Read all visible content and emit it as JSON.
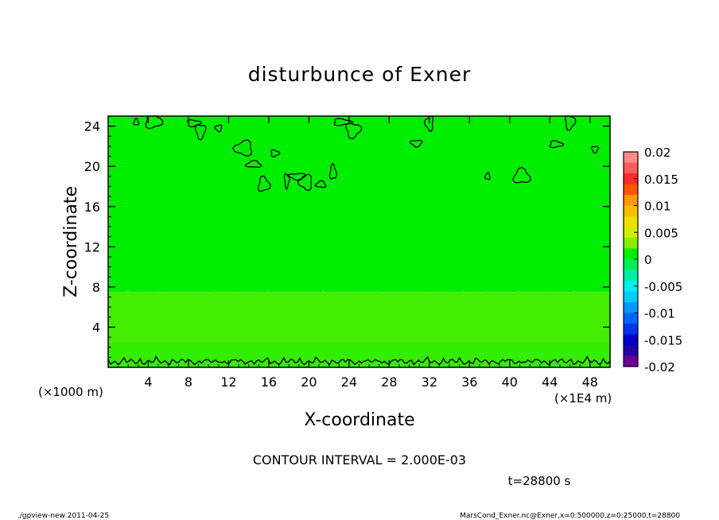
{
  "chart_data": {
    "type": "heatmap",
    "title": "disturbunce of Exner",
    "xlabel": "X-coordinate",
    "ylabel": "Z-coordinate",
    "x_unit": "(×1E4 m)",
    "y_unit": "(×1000 m)",
    "xlim": [
      0,
      50
    ],
    "ylim": [
      0,
      25
    ],
    "x_ticks": [
      4,
      8,
      12,
      16,
      20,
      24,
      28,
      32,
      36,
      40,
      44,
      48
    ],
    "y_ticks": [
      4,
      8,
      12,
      16,
      20,
      24
    ],
    "field_bands": [
      {
        "z_range": [
          0,
          2.5
        ],
        "value_range": [
          0,
          0.002
        ],
        "color": "#33ee00"
      },
      {
        "z_range": [
          2.5,
          7.5
        ],
        "value_range": [
          0.002,
          0.004
        ],
        "color": "#44ee00"
      },
      {
        "z_range": [
          7.5,
          25
        ],
        "value_range": [
          0,
          0.002
        ],
        "color": "#00ee00"
      }
    ],
    "contour_interval_text": "CONTOUR INTERVAL = 2.000E-03",
    "time_text": "t=28800 s",
    "colorbar": {
      "ticks": [
        "0.02",
        "0.015",
        "0.01",
        "0.005",
        "0",
        "-0.005",
        "-0.01",
        "-0.015",
        "-0.02"
      ],
      "levels": [
        {
          "from": 0.018,
          "to": 0.02,
          "color": "#ff8a8a"
        },
        {
          "from": 0.016,
          "to": 0.018,
          "color": "#ff5a5a"
        },
        {
          "from": 0.014,
          "to": 0.016,
          "color": "#ff2a2a"
        },
        {
          "from": 0.012,
          "to": 0.014,
          "color": "#ff5500"
        },
        {
          "from": 0.01,
          "to": 0.012,
          "color": "#ff9900"
        },
        {
          "from": 0.008,
          "to": 0.01,
          "color": "#ffbb00"
        },
        {
          "from": 0.006,
          "to": 0.008,
          "color": "#eedd00"
        },
        {
          "from": 0.004,
          "to": 0.006,
          "color": "#ccee00"
        },
        {
          "from": 0.002,
          "to": 0.004,
          "color": "#88ee00"
        },
        {
          "from": 0,
          "to": 0.002,
          "color": "#00ee00"
        },
        {
          "from": -0.002,
          "to": 0,
          "color": "#00ee55"
        },
        {
          "from": -0.004,
          "to": -0.002,
          "color": "#00eeaa"
        },
        {
          "from": -0.006,
          "to": -0.004,
          "color": "#00eeee"
        },
        {
          "from": -0.008,
          "to": -0.006,
          "color": "#00ccff"
        },
        {
          "from": -0.01,
          "to": -0.008,
          "color": "#0099ff"
        },
        {
          "from": -0.012,
          "to": -0.01,
          "color": "#0066ff"
        },
        {
          "from": -0.014,
          "to": -0.012,
          "color": "#0033ee"
        },
        {
          "from": -0.016,
          "to": -0.014,
          "color": "#0000cc"
        },
        {
          "from": -0.018,
          "to": -0.016,
          "color": "#2200aa"
        },
        {
          "from": -0.02,
          "to": -0.018,
          "color": "#6a0099"
        }
      ]
    },
    "contour_blobs_top": [
      {
        "x": 2.8,
        "z": 24.4
      },
      {
        "x": 4.5,
        "z": 24.5
      },
      {
        "x": 8.5,
        "z": 24.3
      },
      {
        "x": 9.2,
        "z": 23.5
      },
      {
        "x": 11.0,
        "z": 23.8
      },
      {
        "x": 13.5,
        "z": 21.8
      },
      {
        "x": 14.5,
        "z": 20.2
      },
      {
        "x": 15.5,
        "z": 18.2
      },
      {
        "x": 16.6,
        "z": 21.3
      },
      {
        "x": 17.8,
        "z": 18.6
      },
      {
        "x": 18.8,
        "z": 19.0
      },
      {
        "x": 19.7,
        "z": 18.4
      },
      {
        "x": 21.2,
        "z": 18.2
      },
      {
        "x": 22.4,
        "z": 19.4
      },
      {
        "x": 23.3,
        "z": 24.4
      },
      {
        "x": 24.4,
        "z": 23.6
      },
      {
        "x": 30.7,
        "z": 22.3
      },
      {
        "x": 32.0,
        "z": 24.3
      },
      {
        "x": 37.8,
        "z": 19.0
      },
      {
        "x": 41.2,
        "z": 19.0
      },
      {
        "x": 44.6,
        "z": 22.2
      },
      {
        "x": 46.0,
        "z": 24.4
      },
      {
        "x": 48.5,
        "z": 21.7
      }
    ]
  },
  "footer": {
    "left": "./gpview-new  2011-04-25",
    "right": "MarsCond_Exner.nc@Exner,x=0:500000,z=0:25000,t=28800"
  }
}
